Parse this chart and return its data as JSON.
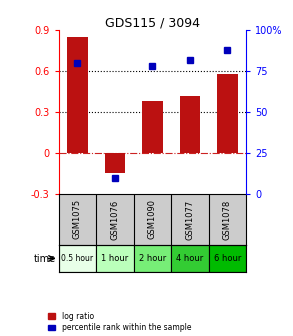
{
  "title": "GDS115 / 3094",
  "samples": [
    "GSM1075",
    "GSM1076",
    "GSM1090",
    "GSM1077",
    "GSM1078"
  ],
  "time_labels": [
    "0.5 hour",
    "1 hour",
    "2 hour",
    "4 hour",
    "6 hour"
  ],
  "time_colors": [
    "#e8ffe8",
    "#bbffbb",
    "#77ee77",
    "#33cc33",
    "#00bb00"
  ],
  "log_ratios": [
    0.85,
    -0.15,
    0.38,
    0.42,
    0.58
  ],
  "percentiles": [
    0.8,
    0.1,
    0.78,
    0.82,
    0.88
  ],
  "bar_color": "#bb1111",
  "dot_color": "#0000bb",
  "ylim_left": [
    -0.3,
    0.9
  ],
  "ylim_right": [
    0.0,
    1.0
  ],
  "yticks_left": [
    -0.3,
    0.0,
    0.3,
    0.6,
    0.9
  ],
  "ytick_labels_left": [
    "-0.3",
    "0",
    "0.3",
    "0.6",
    "0.9"
  ],
  "yticks_right": [
    0.0,
    0.25,
    0.5,
    0.75,
    1.0
  ],
  "ytick_labels_right": [
    "0",
    "25",
    "50",
    "75",
    "100%"
  ],
  "hline_dotted": [
    0.3,
    0.6
  ],
  "bg_color": "#ffffff",
  "sample_bg": "#cccccc",
  "bar_width": 0.55
}
